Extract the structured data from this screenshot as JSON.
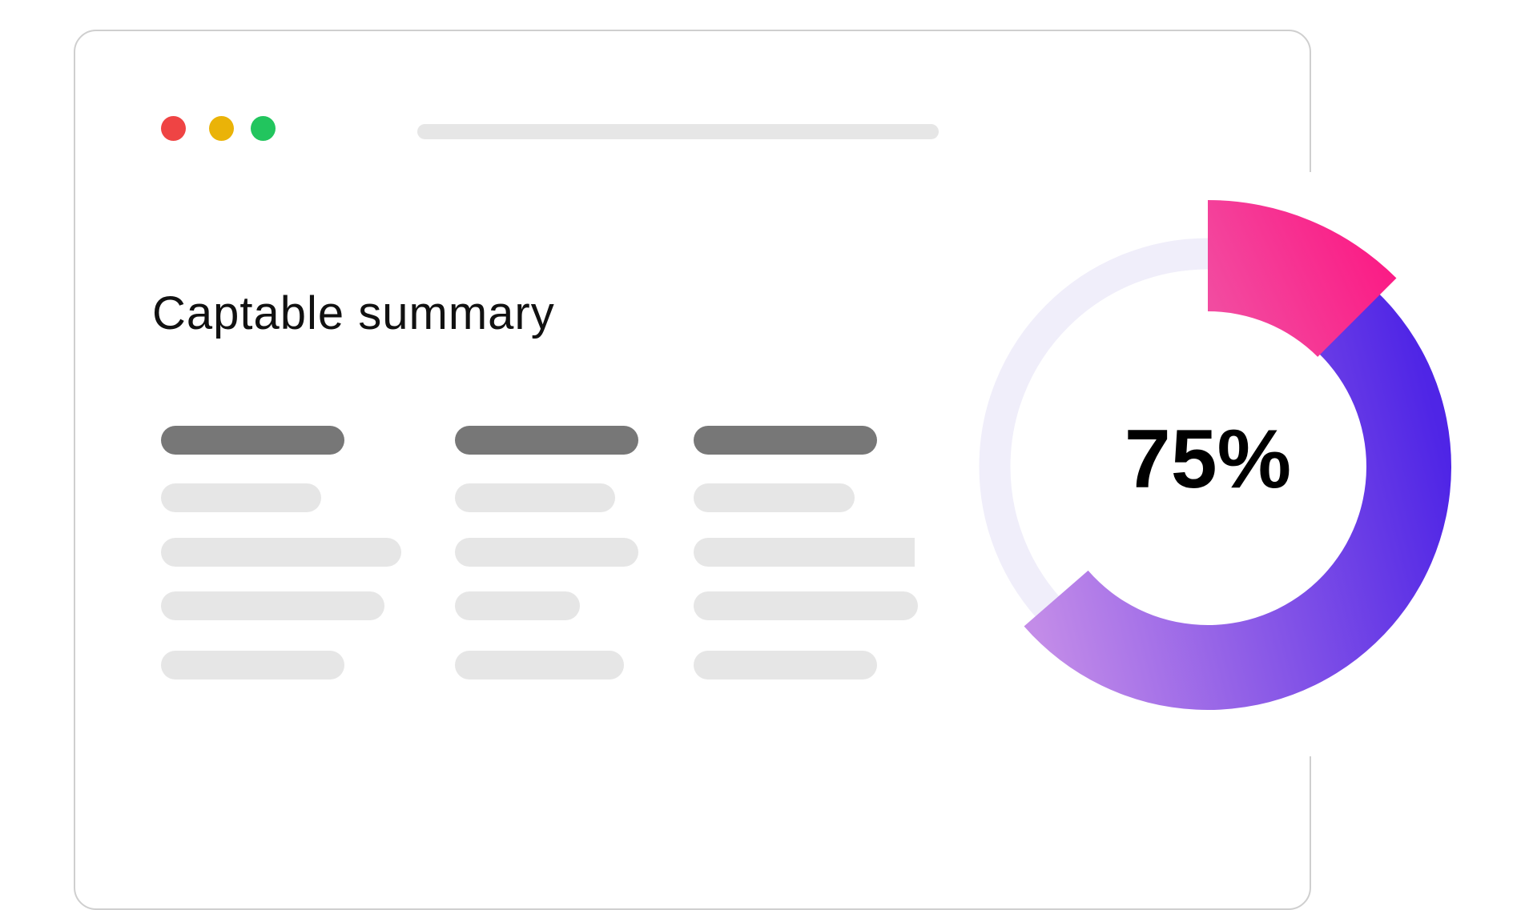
{
  "window": {
    "controls": [
      {
        "name": "close",
        "color": "#ef4444"
      },
      {
        "name": "minimize",
        "color": "#eab308"
      },
      {
        "name": "maximize",
        "color": "#22c55e"
      }
    ]
  },
  "card": {
    "title": "Captable summary"
  },
  "gauge": {
    "value_label": "75%",
    "value": 75,
    "track_color": "#f0eefa",
    "segments": [
      {
        "name": "pink",
        "from": "#f24ba0",
        "to": "#fc1682"
      },
      {
        "name": "purple",
        "from": "#c38ce8",
        "to": "#4f25e6"
      }
    ]
  }
}
